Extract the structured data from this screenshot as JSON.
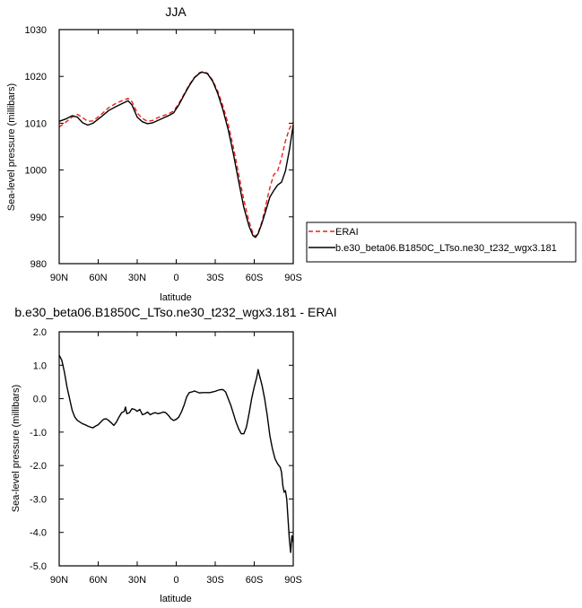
{
  "chart_data": [
    {
      "type": "line",
      "title": "JJA",
      "xlabel": "latitude",
      "ylabel": "Sea-level pressure (millibars)",
      "xlim": [
        90,
        -90
      ],
      "ylim": [
        980,
        1030
      ],
      "x_ticks": [
        90,
        60,
        30,
        0,
        -30,
        -60,
        -90
      ],
      "x_tick_labels": [
        "90N",
        "60N",
        "30N",
        "0",
        "30S",
        "60S",
        "90S"
      ],
      "y_ticks": [
        980,
        990,
        1000,
        1010,
        1020,
        1030
      ],
      "y_tick_labels": [
        "980",
        "990",
        "1000",
        "1010",
        "1020",
        "1030"
      ],
      "legend": "right",
      "series": [
        {
          "name": "ERAI",
          "color": "#e8211d",
          "style": "dashed",
          "points": [
            [
              90,
              1009.2
            ],
            [
              85,
              1010.2
            ],
            [
              80,
              1011.3
            ],
            [
              76,
              1011.9
            ],
            [
              72,
              1011.2
            ],
            [
              68,
              1010.4
            ],
            [
              64,
              1010.5
            ],
            [
              58,
              1011.8
            ],
            [
              52,
              1013.3
            ],
            [
              46,
              1014.3
            ],
            [
              40,
              1015.0
            ],
            [
              37,
              1015.3
            ],
            [
              34,
              1014.6
            ],
            [
              30,
              1012.2
            ],
            [
              26,
              1011.0
            ],
            [
              22,
              1010.4
            ],
            [
              18,
              1010.6
            ],
            [
              14,
              1011.2
            ],
            [
              10,
              1011.6
            ],
            [
              6,
              1012.0
            ],
            [
              2,
              1012.6
            ],
            [
              -2,
              1014.2
            ],
            [
              -6,
              1016.2
            ],
            [
              -10,
              1018.2
            ],
            [
              -14,
              1019.8
            ],
            [
              -18,
              1020.8
            ],
            [
              -20,
              1021.0
            ],
            [
              -24,
              1020.7
            ],
            [
              -28,
              1019.2
            ],
            [
              -32,
              1016.8
            ],
            [
              -36,
              1013.6
            ],
            [
              -40,
              1009.8
            ],
            [
              -44,
              1004.8
            ],
            [
              -48,
              999.2
            ],
            [
              -52,
              993.6
            ],
            [
              -56,
              989.0
            ],
            [
              -59,
              986.5
            ],
            [
              -61,
              985.8
            ],
            [
              -63,
              986.6
            ],
            [
              -66,
              989.0
            ],
            [
              -69,
              992.6
            ],
            [
              -72,
              996.2
            ],
            [
              -75,
              999.0
            ],
            [
              -78,
              999.8
            ],
            [
              -81,
              1002.6
            ],
            [
              -84,
              1006.2
            ],
            [
              -87,
              1008.8
            ],
            [
              -90,
              1010.2
            ]
          ]
        },
        {
          "name": "b.e30_beta06.B1850C_LTso.ne30_t232_wgx3.181",
          "color": "#000000",
          "style": "solid",
          "points": [
            [
              90,
              1010.4
            ],
            [
              85,
              1010.9
            ],
            [
              80,
              1011.6
            ],
            [
              76,
              1011.3
            ],
            [
              72,
              1010.1
            ],
            [
              68,
              1009.6
            ],
            [
              64,
              1010.0
            ],
            [
              58,
              1011.3
            ],
            [
              52,
              1012.7
            ],
            [
              46,
              1013.6
            ],
            [
              40,
              1014.4
            ],
            [
              37,
              1014.8
            ],
            [
              34,
              1013.9
            ],
            [
              30,
              1011.3
            ],
            [
              26,
              1010.3
            ],
            [
              22,
              1009.9
            ],
            [
              18,
              1010.1
            ],
            [
              14,
              1010.6
            ],
            [
              10,
              1011.1
            ],
            [
              6,
              1011.6
            ],
            [
              2,
              1012.2
            ],
            [
              -2,
              1013.9
            ],
            [
              -6,
              1016.0
            ],
            [
              -10,
              1018.0
            ],
            [
              -14,
              1019.7
            ],
            [
              -18,
              1020.7
            ],
            [
              -20,
              1020.9
            ],
            [
              -24,
              1020.6
            ],
            [
              -28,
              1019.0
            ],
            [
              -32,
              1016.3
            ],
            [
              -36,
              1012.8
            ],
            [
              -40,
              1008.6
            ],
            [
              -44,
              1003.4
            ],
            [
              -48,
              997.6
            ],
            [
              -52,
              992.0
            ],
            [
              -56,
              988.0
            ],
            [
              -59,
              986.0
            ],
            [
              -61,
              985.6
            ],
            [
              -63,
              986.4
            ],
            [
              -66,
              988.7
            ],
            [
              -69,
              991.4
            ],
            [
              -72,
              994.2
            ],
            [
              -75,
              995.6
            ],
            [
              -78,
              996.8
            ],
            [
              -81,
              997.4
            ],
            [
              -84,
              999.8
            ],
            [
              -87,
              1004.2
            ],
            [
              -90,
              1009.6
            ]
          ]
        }
      ]
    },
    {
      "type": "line",
      "title": "b.e30_beta06.B1850C_LTso.ne30_t232_wgx3.181 - ERAI",
      "xlabel": "latitude",
      "ylabel": "Sea-level pressure (millibars)",
      "xlim": [
        90,
        -90
      ],
      "ylim": [
        -5.0,
        2.0
      ],
      "x_ticks": [
        90,
        60,
        30,
        0,
        -30,
        -60,
        -90
      ],
      "x_tick_labels": [
        "90N",
        "60N",
        "30N",
        "0",
        "30S",
        "60S",
        "90S"
      ],
      "y_ticks": [
        2.0,
        1.0,
        0.0,
        -1.0,
        -2.0,
        -3.0,
        -4.0,
        -5.0
      ],
      "y_tick_labels": [
        "2.0",
        "1.0",
        "0.0",
        "-1.0",
        "-2.0",
        "-3.0",
        "-4.0",
        "-5.0"
      ],
      "series": [
        {
          "name": "",
          "color": "#000000",
          "style": "solid",
          "points": [
            [
              90,
              1.3
            ],
            [
              88,
              1.15
            ],
            [
              86,
              0.8
            ],
            [
              84,
              0.35
            ],
            [
              82,
              0.0
            ],
            [
              80,
              -0.35
            ],
            [
              78,
              -0.55
            ],
            [
              76,
              -0.65
            ],
            [
              74,
              -0.7
            ],
            [
              72,
              -0.75
            ],
            [
              70,
              -0.78
            ],
            [
              68,
              -0.82
            ],
            [
              66,
              -0.85
            ],
            [
              64,
              -0.87
            ],
            [
              62,
              -0.82
            ],
            [
              60,
              -0.78
            ],
            [
              58,
              -0.7
            ],
            [
              56,
              -0.62
            ],
            [
              54,
              -0.6
            ],
            [
              52,
              -0.65
            ],
            [
              50,
              -0.72
            ],
            [
              48,
              -0.8
            ],
            [
              46,
              -0.7
            ],
            [
              44,
              -0.55
            ],
            [
              42,
              -0.42
            ],
            [
              40,
              -0.38
            ],
            [
              39,
              -0.25
            ],
            [
              38,
              -0.45
            ],
            [
              36,
              -0.42
            ],
            [
              34,
              -0.3
            ],
            [
              32,
              -0.32
            ],
            [
              30,
              -0.38
            ],
            [
              28,
              -0.32
            ],
            [
              26,
              -0.48
            ],
            [
              24,
              -0.45
            ],
            [
              22,
              -0.4
            ],
            [
              20,
              -0.48
            ],
            [
              18,
              -0.44
            ],
            [
              16,
              -0.42
            ],
            [
              14,
              -0.45
            ],
            [
              12,
              -0.43
            ],
            [
              10,
              -0.4
            ],
            [
              8,
              -0.42
            ],
            [
              6,
              -0.5
            ],
            [
              4,
              -0.6
            ],
            [
              2,
              -0.65
            ],
            [
              0,
              -0.62
            ],
            [
              -2,
              -0.55
            ],
            [
              -4,
              -0.4
            ],
            [
              -6,
              -0.2
            ],
            [
              -8,
              0.05
            ],
            [
              -10,
              0.18
            ],
            [
              -12,
              0.2
            ],
            [
              -14,
              0.23
            ],
            [
              -16,
              0.2
            ],
            [
              -18,
              0.17
            ],
            [
              -20,
              0.18
            ],
            [
              -22,
              0.18
            ],
            [
              -24,
              0.18
            ],
            [
              -26,
              0.18
            ],
            [
              -28,
              0.2
            ],
            [
              -30,
              0.22
            ],
            [
              -32,
              0.25
            ],
            [
              -34,
              0.27
            ],
            [
              -36,
              0.27
            ],
            [
              -38,
              0.2
            ],
            [
              -40,
              0.0
            ],
            [
              -42,
              -0.2
            ],
            [
              -44,
              -0.45
            ],
            [
              -46,
              -0.7
            ],
            [
              -48,
              -0.9
            ],
            [
              -50,
              -1.05
            ],
            [
              -52,
              -1.05
            ],
            [
              -54,
              -0.85
            ],
            [
              -56,
              -0.45
            ],
            [
              -58,
              0.0
            ],
            [
              -60,
              0.35
            ],
            [
              -62,
              0.65
            ],
            [
              -63,
              0.87
            ],
            [
              -64,
              0.7
            ],
            [
              -66,
              0.4
            ],
            [
              -68,
              0.0
            ],
            [
              -70,
              -0.5
            ],
            [
              -72,
              -1.1
            ],
            [
              -74,
              -1.5
            ],
            [
              -76,
              -1.8
            ],
            [
              -78,
              -1.95
            ],
            [
              -80,
              -2.05
            ],
            [
              -81,
              -2.2
            ],
            [
              -82,
              -2.6
            ],
            [
              -83,
              -2.8
            ],
            [
              -84,
              -2.75
            ],
            [
              -85,
              -3.0
            ],
            [
              -86,
              -3.6
            ],
            [
              -87,
              -4.2
            ],
            [
              -88,
              -4.6
            ],
            [
              -89,
              -4.1
            ],
            [
              -90,
              -4.3
            ]
          ]
        }
      ]
    }
  ]
}
